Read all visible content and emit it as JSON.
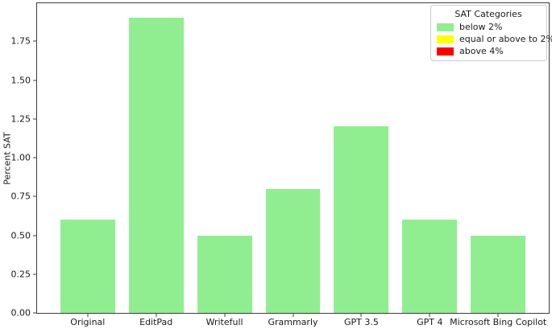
{
  "chart_data": {
    "type": "bar",
    "title": "",
    "xlabel": "",
    "ylabel": "Percent SAT",
    "categories": [
      "Original",
      "EditPad",
      "Writefull",
      "Grammarly",
      "GPT 3.5",
      "GPT 4",
      "Microsoft Bing Copilot"
    ],
    "values": [
      0.6,
      1.9,
      0.5,
      0.8,
      1.2,
      0.6,
      0.5
    ],
    "bar_color": "#90EE90",
    "bar_width": 0.8,
    "xlim": [
      -0.74,
      6.74
    ],
    "ylim": [
      0,
      1.995
    ],
    "yticks": [
      0,
      0.25,
      0.5,
      0.75,
      1.0,
      1.25,
      1.5,
      1.75
    ],
    "ytick_labels": [
      "0.00",
      "0.25",
      "0.50",
      "0.75",
      "1.00",
      "1.25",
      "1.50",
      "1.75"
    ],
    "grid": false,
    "legend": {
      "title": "SAT Categories",
      "position": "upper right",
      "entries": [
        {
          "label": "below 2%",
          "color": "#90EE90"
        },
        {
          "label": "equal or above to 2%",
          "color": "#FFFF00"
        },
        {
          "label": "above 4%",
          "color": "#FF0000"
        }
      ]
    }
  }
}
